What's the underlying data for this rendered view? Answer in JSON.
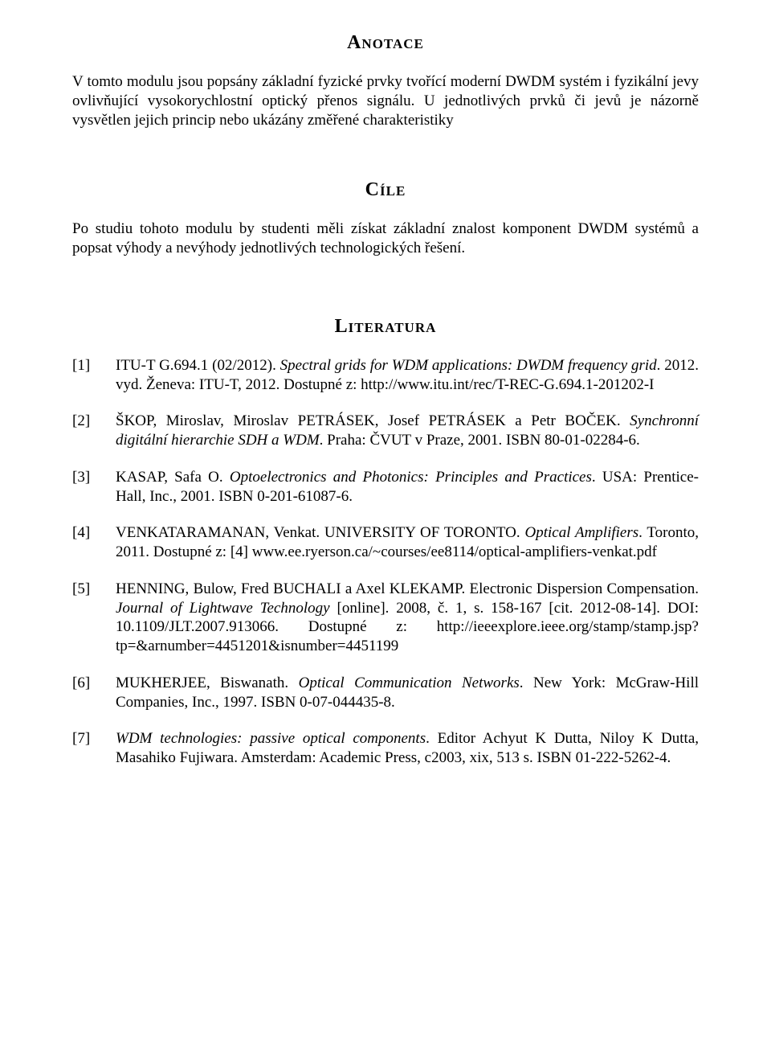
{
  "sections": {
    "anotace": {
      "heading": "Anotace",
      "text": "V tomto modulu jsou popsány základní fyzické prvky tvořící moderní DWDM systém i fyzikální jevy ovlivňující vysokorychlostní optický přenos signálu. U jednotlivých prvků či jevů je názorně vysvětlen jejich princip nebo ukázány změřené charakteristiky"
    },
    "cile": {
      "heading": "Cíle",
      "text": "Po studiu tohoto modulu by studenti měli získat základní znalost komponent DWDM systémů a popsat výhody a nevýhody jednotlivých technologických řešení."
    },
    "literatura": {
      "heading": "Literatura"
    }
  },
  "references": [
    {
      "num": "[1]",
      "pre": "ITU-T G.694.1 (02/2012). ",
      "italic": "Spectral grids for WDM applications: DWDM frequency grid",
      "post": ". 2012. vyd. Ženeva: ITU-T, 2012. Dostupné z: http://www.itu.int/rec/T-REC-G.694.1-201202-I"
    },
    {
      "num": "[2]",
      "pre": "ŠKOP, Miroslav, Miroslav PETRÁSEK, Josef PETRÁSEK a Petr BOČEK. ",
      "italic": "Synchronní digitální hierarchie SDH a WDM",
      "post": ". Praha: ČVUT v Praze, 2001. ISBN 80-01-02284-6."
    },
    {
      "num": "[3]",
      "pre": "KASAP, Safa O. ",
      "italic": "Optoelectronics and Photonics: Principles and Practices",
      "post": ". USA: Prentice-Hall, Inc., 2001. ISBN 0-201-61087-6."
    },
    {
      "num": "[4]",
      "pre": "VENKATARAMANAN, Venkat. UNIVERSITY OF TORONTO. ",
      "italic": "Optical Amplifiers",
      "post": ". Toronto, 2011. Dostupné z: [4] www.ee.ryerson.ca/~courses/ee8114/optical-amplifiers-venkat.pdf"
    },
    {
      "num": "[5]",
      "pre": "HENNING, Bulow, Fred BUCHALI a Axel KLEKAMP. Electronic Dispersion Compensation. ",
      "italic": "Journal of Lightwave Technology",
      "post": " [online]. 2008, č. 1, s. 158-167 [cit. 2012-08-14]. DOI: 10.1109/JLT.2007.913066. Dostupné z: http://ieeexplore.ieee.org/stamp/stamp.jsp?tp=&arnumber=4451201&isnumber=4451199"
    },
    {
      "num": "[6]",
      "pre": "MUKHERJEE, Biswanath. ",
      "italic": "Optical Communication Networks",
      "post": ". New York: McGraw-Hill Companies, Inc., 1997. ISBN 0-07-044435-8."
    },
    {
      "num": "[7]",
      "pre": "",
      "italic": "WDM technologies: passive optical components",
      "post": ". Editor Achyut K Dutta, Niloy K Dutta, Masahiko Fujiwara. Amsterdam: Academic Press, c2003, xix, 513 s. ISBN 01-222-5262-4."
    }
  ]
}
